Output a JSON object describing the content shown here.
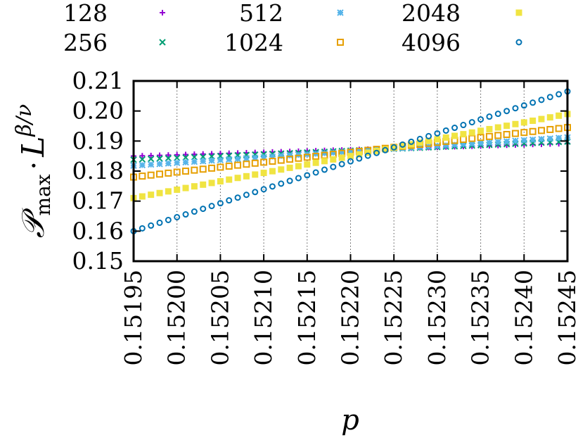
{
  "chart_data": {
    "type": "scatter",
    "xlabel": "p",
    "ylabel": "𝒫max · L^(β/ν)",
    "ylabel_parts": {
      "P": "𝒫",
      "sub": "max",
      "dot": "·",
      "L": "L",
      "exp": "β/ν"
    },
    "xlim": [
      0.15195,
      0.15245
    ],
    "ylim": [
      0.15,
      0.21
    ],
    "xticks": [
      "0.15195",
      "0.15200",
      "0.15205",
      "0.15210",
      "0.15215",
      "0.15220",
      "0.15225",
      "0.15230",
      "0.15235",
      "0.15240",
      "0.15245"
    ],
    "yticks": [
      "0.15",
      "0.16",
      "0.17",
      "0.18",
      "0.19",
      "0.20",
      "0.21"
    ],
    "grid_x": true,
    "grid_y": false,
    "legend_position": "top",
    "x_start": 0.15195,
    "x_step": 1e-05,
    "n_points": 51,
    "series": [
      {
        "name": "128",
        "marker": "plus",
        "color": "#9400d3",
        "y_start": 0.185,
        "y_end": 0.1892
      },
      {
        "name": "256",
        "marker": "cross",
        "color": "#009e73",
        "y_start": 0.1838,
        "y_end": 0.1898
      },
      {
        "name": "512",
        "marker": "star",
        "color": "#56b4e9",
        "y_start": 0.1818,
        "y_end": 0.1912
      },
      {
        "name": "1024",
        "marker": "open-square",
        "color": "#e69f00",
        "y_start": 0.178,
        "y_end": 0.1945
      },
      {
        "name": "2048",
        "marker": "filled-square",
        "color": "#f0e442",
        "y_start": 0.171,
        "y_end": 0.199
      },
      {
        "name": "4096",
        "marker": "open-circle",
        "color": "#0072b2",
        "y_start": 0.16,
        "y_end": 0.2065
      }
    ]
  }
}
